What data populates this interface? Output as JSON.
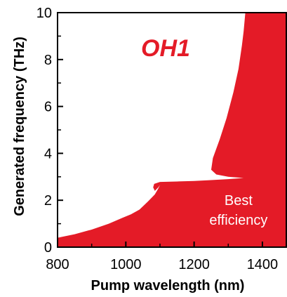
{
  "chart_data": {
    "type": "area",
    "title": "OH1",
    "xlabel": "Pump wavelength (nm)",
    "ylabel": "Generated frequency (THz)",
    "xlim": [
      800,
      1470
    ],
    "ylim": [
      0,
      10
    ],
    "x_ticks": [
      800,
      1000,
      1200,
      1400
    ],
    "y_ticks": [
      0,
      2,
      4,
      6,
      8,
      10
    ],
    "x_tick_labels": [
      "800",
      "1000",
      "1200",
      "1400"
    ],
    "y_tick_labels": [
      "0",
      "2",
      "4",
      "6",
      "8",
      "10"
    ],
    "annotation": {
      "lines": [
        "Best",
        "efficiency"
      ],
      "x": 1330,
      "y": 1.8
    },
    "grid": false,
    "fill_color": "#e41b27",
    "title_color": "#e41b27",
    "series": [
      {
        "boundary_points": [
          [
            800,
            0.4
          ],
          [
            850,
            0.55
          ],
          [
            900,
            0.75
          ],
          [
            950,
            1.0
          ],
          [
            990,
            1.25
          ],
          [
            1015,
            1.4
          ],
          [
            1040,
            1.6
          ],
          [
            1065,
            1.95
          ],
          [
            1085,
            2.25
          ],
          [
            1095,
            2.5
          ],
          [
            1100,
            2.65
          ],
          [
            1095,
            2.55
          ],
          [
            1085,
            2.4
          ],
          [
            1080,
            2.55
          ],
          [
            1083,
            2.7
          ],
          [
            1100,
            2.78
          ],
          [
            1150,
            2.8
          ],
          [
            1200,
            2.82
          ],
          [
            1240,
            2.85
          ],
          [
            1300,
            2.9
          ],
          [
            1345,
            2.95
          ],
          [
            1300,
            3.0
          ],
          [
            1265,
            3.1
          ],
          [
            1250,
            3.3
          ],
          [
            1255,
            3.8
          ],
          [
            1275,
            4.6
          ],
          [
            1295,
            5.5
          ],
          [
            1315,
            6.6
          ],
          [
            1330,
            7.6
          ],
          [
            1340,
            8.6
          ],
          [
            1345,
            9.2
          ],
          [
            1350,
            10.0
          ],
          [
            1470,
            10.0
          ],
          [
            1470,
            0
          ],
          [
            800,
            0
          ]
        ]
      }
    ]
  }
}
